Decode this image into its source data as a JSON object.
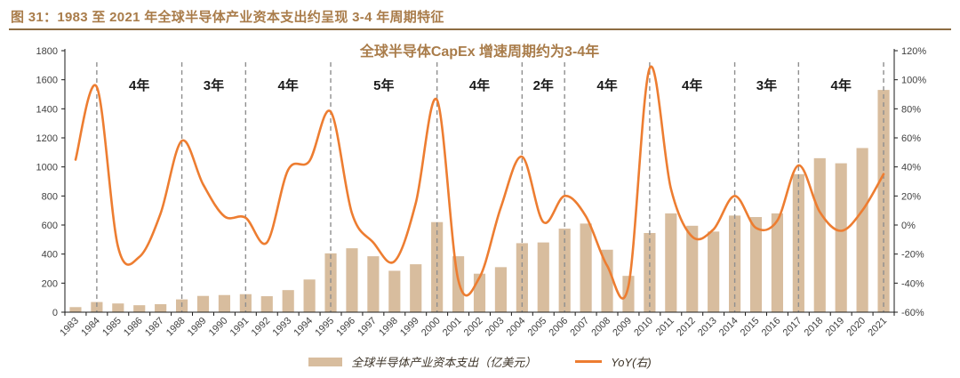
{
  "header": {
    "title": "图 31：1983 至 2021 年全球半导体产业资本支出约呈现 3-4 年周期特征"
  },
  "chart_data": {
    "type": "bar+line combo",
    "title": "全球半导体CapEx 增速周期约为3-4年",
    "categories": [
      "1983",
      "1984",
      "1985",
      "1986",
      "1987",
      "1988",
      "1989",
      "1990",
      "1991",
      "1992",
      "1993",
      "1994",
      "1995",
      "1996",
      "1997",
      "1998",
      "1999",
      "2000",
      "2001",
      "2002",
      "2003",
      "2004",
      "2005",
      "2006",
      "2007",
      "2008",
      "2009",
      "2010",
      "2011",
      "2012",
      "2013",
      "2014",
      "2015",
      "2016",
      "2017",
      "2018",
      "2019",
      "2020",
      "2021"
    ],
    "series": [
      {
        "name": "全球半导体产业资本支出（亿美元）",
        "type": "bar",
        "axis": "left",
        "color": "#D8BD9E",
        "values": [
          35,
          70,
          60,
          48,
          55,
          88,
          112,
          118,
          124,
          110,
          152,
          225,
          405,
          440,
          385,
          285,
          330,
          620,
          385,
          265,
          310,
          475,
          480,
          575,
          610,
          430,
          250,
          545,
          680,
          595,
          555,
          665,
          655,
          680,
          950,
          1060,
          1025,
          1130,
          1530
        ]
      },
      {
        "name": "YoY(右)",
        "type": "line",
        "axis": "right",
        "color": "#ED7D31",
        "smooth": true,
        "values": [
          45,
          95,
          -15,
          -22,
          8,
          58,
          28,
          6,
          5,
          -12,
          38,
          44,
          78,
          8,
          -12,
          -25,
          15,
          86,
          -38,
          -36,
          12,
          47,
          2,
          20,
          6,
          -28,
          -42,
          108,
          25,
          -8,
          -3,
          20,
          -2,
          3,
          41,
          9,
          -4,
          10,
          35
        ]
      }
    ],
    "left_axis": {
      "min": 0,
      "max": 1800,
      "step": 200
    },
    "right_axis": {
      "min": -60,
      "max": 120,
      "step": 20,
      "suffix": "%"
    },
    "cycle_markers": {
      "years": [
        1984,
        1988,
        1991,
        1995,
        2000,
        2004,
        2006,
        2010,
        2014,
        2017,
        2021
      ],
      "labels": [
        "4年",
        "3年",
        "4年",
        "5年",
        "4年",
        "2年",
        "4年",
        "4年",
        "3年",
        "4年"
      ]
    },
    "grid": false,
    "legend_position": "bottom",
    "colors": {
      "accent_brown": "#A97C4A",
      "header_rule": "#8D6C42",
      "bar": "#D8BD9E",
      "line": "#ED7D31",
      "divider": "#8F8F8F",
      "axis": "#1A1A1A",
      "axis_text": "#404040"
    }
  }
}
